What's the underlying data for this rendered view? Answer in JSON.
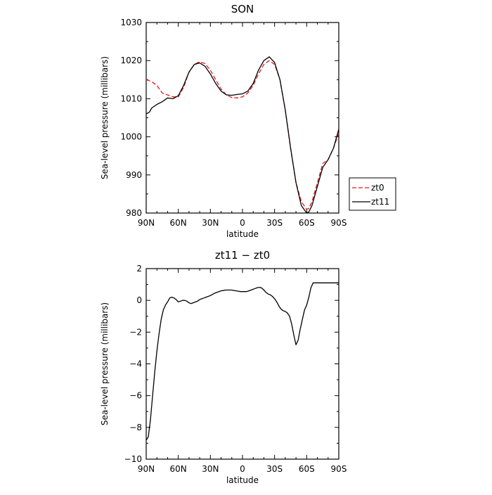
{
  "chart_data": [
    {
      "type": "line",
      "title": "SON",
      "xlabel": "latitude",
      "ylabel": "Sea-level pressure (millibars)",
      "xlim": [
        90,
        -90
      ],
      "ylim": [
        980,
        1030
      ],
      "x_ticks": [
        90,
        60,
        30,
        0,
        -30,
        -60,
        -90
      ],
      "x_tick_labels": [
        "90N",
        "60N",
        "30N",
        "0",
        "30S",
        "60S",
        "90S"
      ],
      "y_ticks": [
        980,
        990,
        1000,
        1010,
        1020,
        1030
      ],
      "y_tick_labels": [
        "980",
        "990",
        "1000",
        "1010",
        "1020",
        "1030"
      ],
      "grid": false,
      "legend_position": "right",
      "series": [
        {
          "name": "zt0",
          "color": "#e41a1c",
          "dash": "dashed",
          "x": [
            90,
            85,
            80,
            75,
            70,
            65,
            60,
            55,
            50,
            45,
            40,
            35,
            30,
            25,
            20,
            15,
            10,
            5,
            0,
            -5,
            -10,
            -15,
            -20,
            -25,
            -30,
            -35,
            -40,
            -45,
            -50,
            -55,
            -60,
            -62,
            -65,
            -70,
            -75,
            -80,
            -85,
            -90
          ],
          "y": [
            1015,
            1014.5,
            1013.5,
            1011.5,
            1011,
            1010.5,
            1010.5,
            1013,
            1017,
            1019,
            1019.7,
            1019.2,
            1017.5,
            1015,
            1012.5,
            1011,
            1010.3,
            1010.2,
            1010.5,
            1011.5,
            1013.5,
            1016.5,
            1019,
            1020,
            1019,
            1015,
            1007,
            997,
            988,
            983,
            981,
            981.2,
            983,
            988,
            993,
            994,
            997,
            1001
          ]
        },
        {
          "name": "zt11",
          "color": "#000000",
          "dash": "solid",
          "x": [
            90,
            87,
            85,
            80,
            75,
            70,
            65,
            60,
            55,
            50,
            45,
            40,
            35,
            30,
            25,
            20,
            15,
            10,
            5,
            0,
            -5,
            -10,
            -15,
            -20,
            -25,
            -30,
            -35,
            -40,
            -45,
            -50,
            -55,
            -60,
            -62,
            -65,
            -70,
            -75,
            -80,
            -85,
            -90
          ],
          "y": [
            1006,
            1006.5,
            1007.5,
            1008.5,
            1009.2,
            1010.2,
            1010,
            1010.8,
            1013.5,
            1017,
            1019,
            1019.4,
            1018.5,
            1016.5,
            1014,
            1012,
            1011,
            1010.9,
            1011.1,
            1011.3,
            1012,
            1014,
            1017.5,
            1020,
            1021,
            1019.5,
            1015,
            1007,
            997,
            988,
            982,
            980,
            980.3,
            982,
            987,
            992,
            994,
            997,
            1002
          ]
        }
      ]
    },
    {
      "type": "line",
      "title": "zt11 − zt0",
      "xlabel": "latitude",
      "ylabel": "Sea-level pressure (millibars)",
      "xlim": [
        90,
        -90
      ],
      "ylim": [
        -10,
        2
      ],
      "x_ticks": [
        90,
        60,
        30,
        0,
        -30,
        -60,
        -90
      ],
      "x_tick_labels": [
        "90N",
        "60N",
        "30N",
        "0",
        "30S",
        "60S",
        "90S"
      ],
      "y_ticks": [
        -10,
        -8,
        -6,
        -4,
        -2,
        0,
        2
      ],
      "y_tick_labels": [
        "−10",
        "−8",
        "−6",
        "−4",
        "−2",
        "0",
        "2"
      ],
      "grid": false,
      "series": [
        {
          "color": "#000000",
          "dash": "solid",
          "x": [
            90,
            88,
            86,
            84,
            82,
            80,
            78,
            76,
            74,
            72,
            70,
            68,
            66,
            64,
            62,
            60,
            58,
            56,
            54,
            52,
            50,
            48,
            46,
            44,
            42,
            40,
            38,
            36,
            34,
            32,
            30,
            28,
            26,
            24,
            22,
            20,
            18,
            16,
            14,
            12,
            10,
            8,
            6,
            4,
            2,
            0,
            -2,
            -4,
            -6,
            -8,
            -10,
            -12,
            -14,
            -16,
            -18,
            -20,
            -22,
            -24,
            -26,
            -28,
            -30,
            -32,
            -34,
            -36,
            -38,
            -40,
            -42,
            -44,
            -46,
            -48,
            -50,
            -52,
            -54,
            -56,
            -58,
            -60,
            -62,
            -64,
            -66,
            -68,
            -70,
            -72,
            -74,
            -76,
            -78,
            -80,
            -82,
            -84,
            -86,
            -88,
            -90
          ],
          "y": [
            -8.8,
            -8.6,
            -7.5,
            -6,
            -4.5,
            -3.2,
            -2.1,
            -1.2,
            -0.6,
            -0.3,
            -0.1,
            0.15,
            0.2,
            0.15,
            0.05,
            -0.1,
            -0.05,
            0.0,
            0.0,
            -0.05,
            -0.15,
            -0.2,
            -0.15,
            -0.1,
            -0.05,
            0.05,
            0.1,
            0.15,
            0.2,
            0.25,
            0.3,
            0.38,
            0.45,
            0.5,
            0.55,
            0.6,
            0.62,
            0.65,
            0.65,
            0.65,
            0.65,
            0.62,
            0.6,
            0.58,
            0.55,
            0.55,
            0.55,
            0.55,
            0.6,
            0.65,
            0.7,
            0.75,
            0.8,
            0.82,
            0.78,
            0.65,
            0.5,
            0.4,
            0.35,
            0.25,
            0.1,
            -0.1,
            -0.35,
            -0.55,
            -0.65,
            -0.7,
            -0.8,
            -1.0,
            -1.5,
            -2.2,
            -2.8,
            -2.5,
            -1.8,
            -1.2,
            -0.6,
            -0.3,
            0.2,
            0.8,
            1.1,
            1.1,
            1.1,
            1.1,
            1.1,
            1.1,
            1.1,
            1.1,
            1.1,
            1.1,
            1.1,
            1.1,
            1.1
          ]
        }
      ]
    }
  ]
}
